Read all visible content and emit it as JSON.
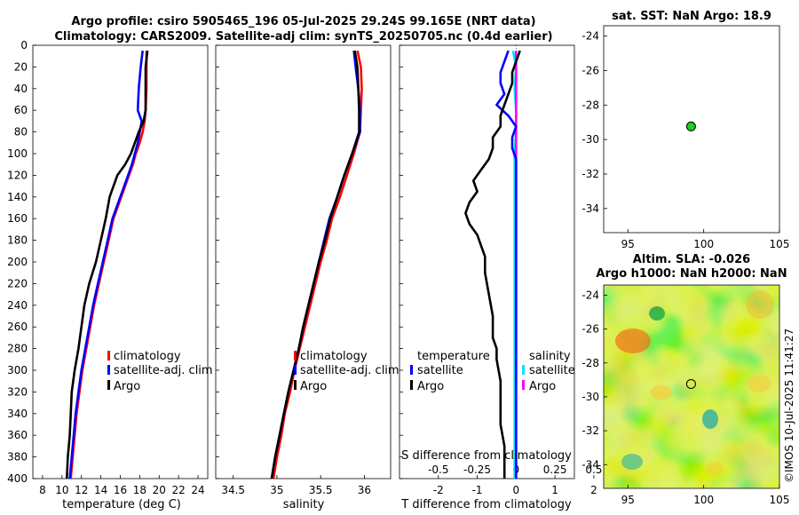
{
  "header": {
    "line1": "Argo profile: csiro 5905465_196 05-Jul-2025 29.24S 99.165E (NRT data)",
    "line2": "Climatology: CARS2009. Satellite-adj clim: synTS_20250705.nc (0.4d earlier)"
  },
  "colors": {
    "climatology": "#ff0000",
    "satellite": "#0000ff",
    "argo": "#000000",
    "sal_satellite": "#00e5ff",
    "sal_argo": "#ff00ff"
  },
  "depth_axis": {
    "ylim": [
      0,
      400
    ],
    "ticks": [
      "0",
      "20",
      "40",
      "60",
      "80",
      "100",
      "120",
      "140",
      "160",
      "180",
      "200",
      "220",
      "240",
      "260",
      "280",
      "300",
      "320",
      "340",
      "360",
      "380",
      "400"
    ]
  },
  "chart_data": [
    {
      "id": "temperature",
      "type": "line",
      "xlabel": "temperature (deg C)",
      "xlim": [
        7,
        25
      ],
      "xticks": [
        "8",
        "10",
        "12",
        "14",
        "16",
        "18",
        "20",
        "22",
        "24"
      ],
      "xtick_values": [
        8,
        10,
        12,
        14,
        16,
        18,
        20,
        22,
        24
      ],
      "depth": [
        5,
        20,
        40,
        60,
        70,
        80,
        90,
        100,
        110,
        120,
        140,
        160,
        180,
        200,
        220,
        240,
        260,
        280,
        300,
        320,
        340,
        360,
        380,
        400
      ],
      "series": [
        {
          "name": "climatology",
          "values": [
            18.7,
            18.7,
            18.7,
            18.6,
            18.5,
            18.3,
            18.0,
            17.6,
            17.3,
            16.9,
            16.1,
            15.3,
            14.8,
            14.3,
            13.8,
            13.3,
            12.9,
            12.5,
            12.1,
            11.8,
            11.5,
            11.3,
            11.1,
            10.9
          ]
        },
        {
          "name": "satellite-adj. clim",
          "values": [
            18.3,
            18.1,
            17.9,
            17.8,
            18.2,
            18.0,
            17.8,
            17.5,
            17.2,
            16.8,
            16.0,
            15.2,
            14.7,
            14.2,
            13.7,
            13.2,
            12.8,
            12.4,
            12.0,
            11.7,
            11.4,
            11.2,
            11.0,
            10.8
          ]
        },
        {
          "name": "Argo",
          "values": [
            18.8,
            18.6,
            18.6,
            18.6,
            18.4,
            17.9,
            17.5,
            17.1,
            16.5,
            15.7,
            14.9,
            14.5,
            14.0,
            13.5,
            12.8,
            12.3,
            12.0,
            11.7,
            11.3,
            11.0,
            10.9,
            10.8,
            10.6,
            10.5
          ]
        }
      ],
      "legend": [
        "climatology",
        "satellite-adj. clim",
        "Argo"
      ]
    },
    {
      "id": "salinity",
      "type": "line",
      "xlabel": "salinity",
      "xlim": [
        34.3,
        36.3
      ],
      "xticks": [
        "34.5",
        "35",
        "35.5",
        "36"
      ],
      "xtick_values": [
        34.5,
        35,
        35.5,
        36
      ],
      "depth": [
        5,
        20,
        40,
        60,
        80,
        100,
        120,
        140,
        160,
        180,
        200,
        220,
        240,
        260,
        280,
        300,
        320,
        340,
        360,
        380,
        400
      ],
      "series": [
        {
          "name": "climatology",
          "values": [
            35.92,
            35.96,
            35.97,
            35.96,
            35.95,
            35.88,
            35.8,
            35.72,
            35.63,
            35.57,
            35.5,
            35.44,
            35.38,
            35.32,
            35.26,
            35.2,
            35.15,
            35.09,
            35.05,
            35.0,
            34.96
          ]
        },
        {
          "name": "satellite-adj. clim",
          "values": [
            35.88,
            35.9,
            35.93,
            35.95,
            35.95,
            35.86,
            35.77,
            35.69,
            35.6,
            35.54,
            35.48,
            35.42,
            35.36,
            35.3,
            35.25,
            35.19,
            35.13,
            35.08,
            35.03,
            34.98,
            34.94
          ]
        },
        {
          "name": "Argo",
          "values": [
            35.89,
            35.92,
            35.93,
            35.94,
            35.94,
            35.86,
            35.77,
            35.69,
            35.61,
            35.55,
            35.48,
            35.42,
            35.36,
            35.3,
            35.25,
            35.19,
            35.13,
            35.08,
            35.03,
            34.98,
            34.94
          ]
        }
      ],
      "legend": [
        "climatology",
        "satellite-adj. clim",
        "Argo"
      ]
    },
    {
      "id": "difference",
      "type": "line",
      "xlabel": "T difference from climatology",
      "xlim": [
        -3,
        1.5
      ],
      "xticks": [
        "-2",
        "-1",
        "0",
        "1",
        "2"
      ],
      "xtick_values": [
        -2,
        -1,
        0,
        1,
        2
      ],
      "top_label": "S difference from climatology",
      "top_ticks": [
        "-0.5",
        "-0.25",
        "0",
        "0.25",
        "0.5"
      ],
      "top_tick_values": [
        -0.5,
        -0.25,
        0,
        0.25,
        0.5
      ],
      "top_xlim": [
        -0.75,
        0.375
      ],
      "depth_T": [
        5,
        15,
        25,
        35,
        45,
        55,
        65,
        75,
        85,
        95,
        105,
        115,
        125,
        135,
        145,
        155,
        165,
        175,
        185,
        195,
        210,
        230,
        250,
        270,
        280,
        290,
        310,
        330,
        350,
        370,
        390,
        400
      ],
      "series_T": [
        {
          "name": "temperature satellite",
          "values": [
            -0.2,
            -0.3,
            -0.4,
            -0.4,
            -0.3,
            -0.5,
            -0.2,
            0.0,
            -0.1,
            -0.1,
            0.0,
            0.0,
            0.0,
            0.0,
            0.0,
            0.0,
            0.0,
            0.0,
            0.0,
            0.0,
            0.0,
            0.0,
            0.0,
            0.0,
            0.0,
            0.0,
            0.0,
            0.0,
            0.0,
            0.0,
            0.0,
            0.0
          ]
        },
        {
          "name": "temperature Argo",
          "values": [
            0.1,
            0.0,
            -0.1,
            -0.1,
            -0.2,
            -0.3,
            -0.4,
            -0.4,
            -0.6,
            -0.6,
            -0.7,
            -0.9,
            -1.1,
            -1.0,
            -1.2,
            -1.3,
            -1.2,
            -1.0,
            -0.9,
            -0.8,
            -0.8,
            -0.7,
            -0.6,
            -0.6,
            -0.5,
            -0.5,
            -0.4,
            -0.4,
            -0.4,
            -0.3,
            -0.3,
            -0.3
          ]
        }
      ],
      "depth_S": [
        5,
        20,
        40,
        60,
        80,
        100,
        120,
        140,
        160,
        180,
        200,
        220,
        240,
        260,
        280,
        300,
        320,
        340,
        360,
        380,
        400
      ],
      "series_S": [
        {
          "name": "salinity satellite",
          "values": [
            -0.02,
            0.0,
            -0.01,
            0.0,
            0.0,
            -0.01,
            -0.01,
            -0.01,
            -0.01,
            -0.01,
            -0.01,
            -0.01,
            -0.01,
            -0.01,
            -0.01,
            -0.01,
            -0.01,
            -0.01,
            -0.01,
            -0.01,
            -0.01
          ]
        },
        {
          "name": "salinity Argo",
          "values": [
            0.0,
            0.0,
            0.0,
            0.0,
            0.0,
            0.0,
            0.0,
            0.0,
            0.0,
            0.0,
            0.0,
            0.0,
            0.0,
            0.0,
            0.0,
            0.0,
            0.0,
            0.0,
            0.0,
            0.0,
            0.0
          ]
        }
      ],
      "legend": {
        "temperature_header": "temperature",
        "salinity_header": "salinity",
        "t_items": [
          "satellite",
          "Argo"
        ],
        "s_items": [
          "satellite",
          "Argo"
        ]
      }
    },
    {
      "id": "sst_map",
      "type": "scatter",
      "title": "sat. SST: NaN Argo: 18.9",
      "xlim": [
        93.4,
        105
      ],
      "ylim": [
        -35.4,
        -23.4
      ],
      "xticks": [
        "95",
        "100",
        "105"
      ],
      "xtick_values": [
        95,
        100,
        105
      ],
      "yticks": [
        "-24",
        "-26",
        "-28",
        "-30",
        "-32",
        "-34"
      ],
      "ytick_values": [
        -24,
        -26,
        -28,
        -30,
        -32,
        -34
      ],
      "point": {
        "lon": 99.165,
        "lat": -29.24
      }
    },
    {
      "id": "sla_map",
      "type": "heatmap",
      "title1": "Altim. SLA: -0.026",
      "title2": "Argo h1000: NaN h2000: NaN",
      "xlim": [
        93.4,
        105
      ],
      "ylim": [
        -35.4,
        -23.4
      ],
      "xticks": [
        "95",
        "100",
        "105"
      ],
      "xtick_values": [
        95,
        100,
        105
      ],
      "yticks": [
        "-24",
        "-26",
        "-28",
        "-30",
        "-32",
        "-34"
      ],
      "ytick_values": [
        -24,
        -26,
        -28,
        -30,
        -32,
        -34
      ],
      "point": {
        "lon": 99.165,
        "lat": -29.24
      }
    }
  ],
  "footer": {
    "stamp": "©IMOS 10-Jul-2025 11:41:27"
  }
}
